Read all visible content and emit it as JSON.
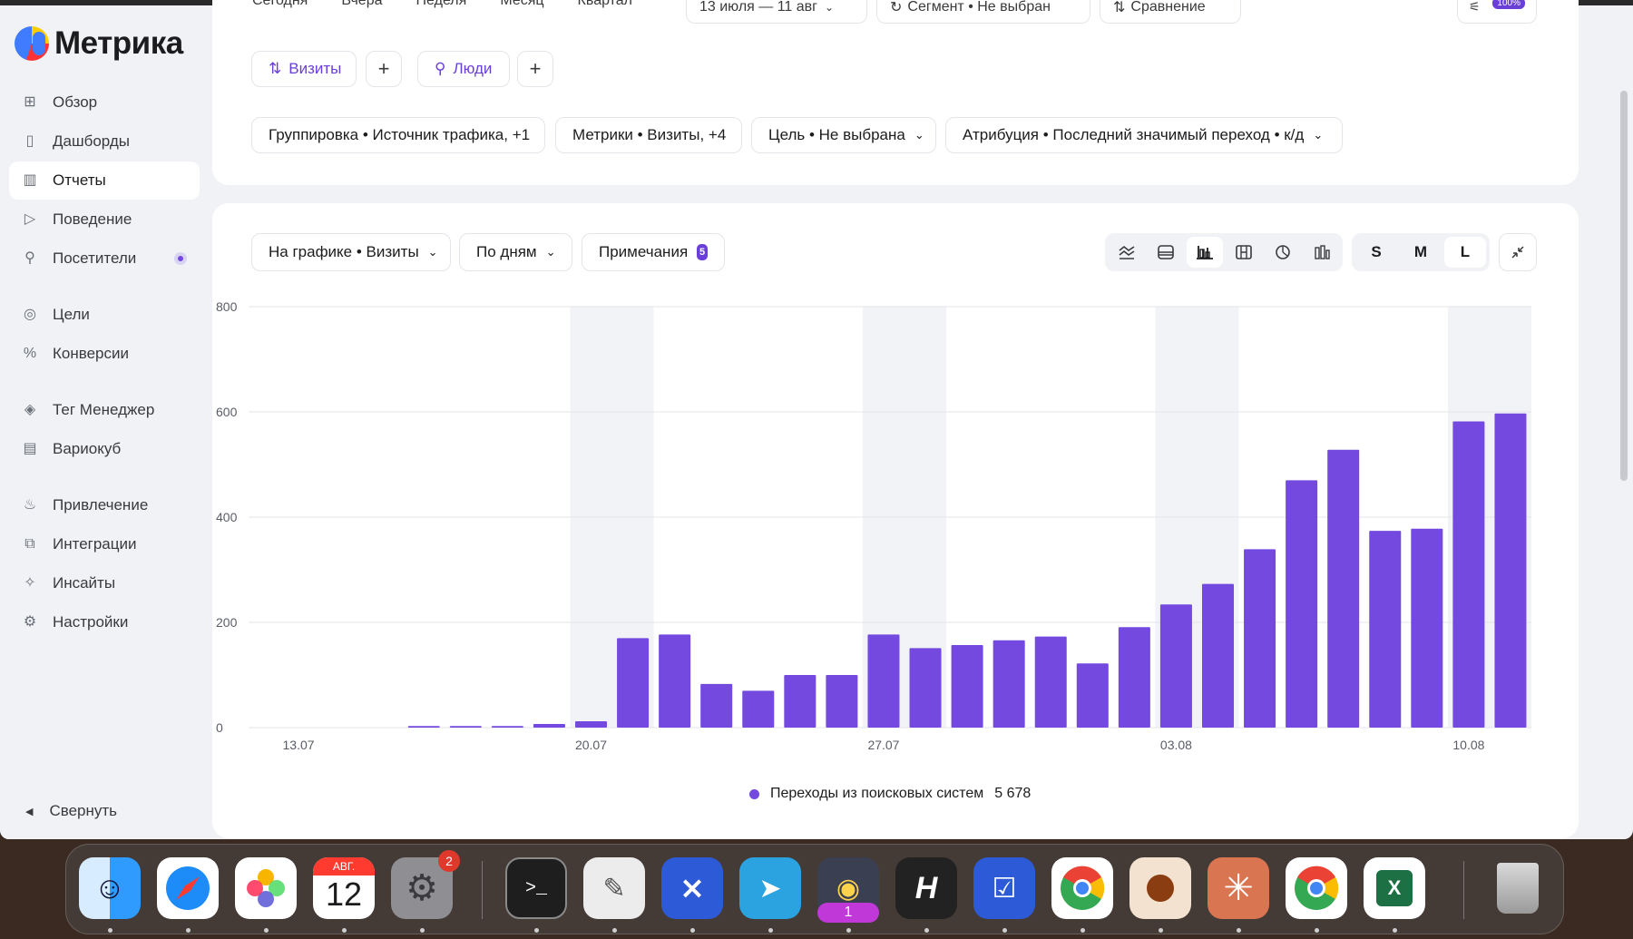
{
  "app": {
    "logo_text": "Метрика"
  },
  "sidebar": {
    "items": [
      {
        "label": "Обзор",
        "icon": "grid-icon"
      },
      {
        "label": "Дашборды",
        "icon": "dashboards-icon"
      },
      {
        "label": "Отчеты",
        "icon": "reports-icon",
        "active": true
      },
      {
        "label": "Поведение",
        "icon": "play-icon"
      },
      {
        "label": "Посетители",
        "icon": "person-icon",
        "has_dot": true
      },
      {
        "label": "Цели",
        "icon": "target-icon"
      },
      {
        "label": "Конверсии",
        "icon": "percent-icon"
      },
      {
        "label": "Тег Менеджер",
        "icon": "tag-manager-icon"
      },
      {
        "label": "Вариокуб",
        "icon": "variocube-icon"
      },
      {
        "label": "Привлечение",
        "icon": "flame-icon"
      },
      {
        "label": "Интеграции",
        "icon": "puzzle-icon"
      },
      {
        "label": "Инсайты",
        "icon": "insights-icon"
      },
      {
        "label": "Настройки",
        "icon": "gear-icon"
      }
    ],
    "collapse_label": "Свернуть"
  },
  "top_bar": {
    "tabs": [
      "Сегодня",
      "Вчера",
      "Неделя",
      "Месяц",
      "Квартал"
    ],
    "date_range": "13 июля — 11 авг",
    "segment": "Сегмент • Не выбран",
    "compare": "Сравнение",
    "zoom_badge": "100%"
  },
  "filters": {
    "visits": "Визиты",
    "people": "Люди",
    "grouping": "Группировка • Источник трафика, +1",
    "metrics": "Метрики • Визиты, +4",
    "goal": "Цель • Не выбрана",
    "attribution": "Атрибуция • Последний значимый переход • к/д"
  },
  "chart_toolbar": {
    "on_chart": "На графике • Визиты",
    "by_days": "По дням",
    "notes": "Примечания",
    "notes_count": "5",
    "sizes": [
      "S",
      "M",
      "L"
    ],
    "selected_size": "L",
    "view_icons": [
      "line-chart-icon",
      "area-chart-icon",
      "bar-chart-icon",
      "table-chart-icon",
      "pie-chart-icon",
      "column-chart-icon"
    ],
    "selected_view": "bar-chart-icon"
  },
  "chart_data": {
    "type": "bar",
    "x_tick_labels": [
      "13.07",
      "20.07",
      "27.07",
      "03.08",
      "10.08"
    ],
    "y_tick_labels": [
      "0",
      "200",
      "400",
      "600",
      "800"
    ],
    "ylim": [
      0,
      800
    ],
    "grid": true,
    "categories": [
      "13.07",
      "14.07",
      "15.07",
      "16.07",
      "17.07",
      "18.07",
      "19.07",
      "20.07",
      "21.07",
      "22.07",
      "23.07",
      "24.07",
      "25.07",
      "26.07",
      "27.07",
      "28.07",
      "29.07",
      "30.07",
      "31.07",
      "01.08",
      "02.08",
      "03.08",
      "04.08",
      "05.08",
      "06.08",
      "07.08",
      "08.08",
      "09.08",
      "10.08",
      "11.08"
    ],
    "series": [
      {
        "name": "Переходы из поисковых систем",
        "color": "#7349e0",
        "values": [
          0,
          0,
          0,
          3,
          3,
          3,
          7,
          12,
          170,
          177,
          83,
          70,
          100,
          100,
          177,
          151,
          157,
          166,
          173,
          122,
          191,
          234,
          273,
          339,
          470,
          528,
          374,
          378,
          582,
          597
        ]
      }
    ],
    "weekend_bands": [
      [
        "20.07",
        "21.07"
      ],
      [
        "27.07",
        "28.07"
      ],
      [
        "03.08",
        "04.08"
      ],
      [
        "10.08",
        "11.08"
      ]
    ],
    "legend": {
      "label": "Переходы из поисковых систем",
      "total": "5 678",
      "placement": "bottom-center"
    }
  },
  "dock": {
    "apps": [
      "finder-icon",
      "safari-icon",
      "photos-icon",
      "calendar-icon",
      "system-settings-icon",
      "terminal-icon",
      "script-editor-icon",
      "xcode-like-icon",
      "telegram-icon",
      "chrome-canary-icon",
      "hypeterm-icon",
      "tasks-icon",
      "chrome-icon",
      "ball-app-icon",
      "claude-icon",
      "chrome-icon-2",
      "excel-icon",
      "trash-icon"
    ],
    "calendar_month": "АВГ.",
    "calendar_day": "12",
    "settings_badge": "2",
    "canary_badge": "1"
  }
}
